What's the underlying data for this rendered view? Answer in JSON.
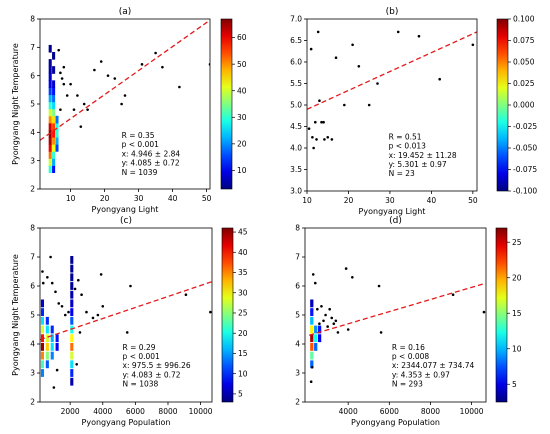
{
  "chart_data": [
    {
      "type": "scatter",
      "panel_label": "(a)",
      "xlabel": "Pyongyang Light",
      "ylabel": "Pyongyang Night Temperature",
      "xlim": [
        1,
        51
      ],
      "ylim": [
        2,
        8
      ],
      "xticks": [
        10,
        20,
        30,
        40,
        50
      ],
      "yticks": [
        2,
        3,
        4,
        5,
        6,
        7,
        8
      ],
      "colorbar": {
        "range": [
          3,
          67
        ],
        "ticks": [
          10,
          20,
          30,
          40,
          50,
          60
        ]
      },
      "regression_line": {
        "x": [
          1,
          51
        ],
        "y": [
          3.72,
          7.96
        ]
      },
      "stats": [
        "R = 0.35",
        "p < 0.001",
        "x: 4.946 ± 2.84",
        "y: 4.085 ± 0.72",
        "N = 1039"
      ],
      "points": [
        [
          7,
          4.8
        ],
        [
          7,
          6.1
        ],
        [
          7.5,
          5.9
        ],
        [
          8,
          5.7
        ],
        [
          9,
          5.3
        ],
        [
          10,
          5.7
        ],
        [
          11,
          4.8
        ],
        [
          12,
          5.3
        ],
        [
          14,
          5.0
        ],
        [
          15,
          4.8
        ],
        [
          17,
          6.2
        ],
        [
          19,
          6.5
        ],
        [
          21,
          6.0
        ],
        [
          23,
          5.9
        ],
        [
          25,
          5.0
        ],
        [
          26,
          5.3
        ],
        [
          31,
          6.4
        ],
        [
          35,
          6.8
        ],
        [
          37,
          6.3
        ],
        [
          42,
          5.6
        ],
        [
          51,
          6.4
        ],
        [
          13,
          4.2
        ],
        [
          6.5,
          6.9
        ],
        [
          8,
          6.3
        ]
      ],
      "density_cells": [
        [
          4,
          2.7,
          30
        ],
        [
          5,
          2.7,
          12
        ],
        [
          4,
          2.95,
          40
        ],
        [
          5,
          2.95,
          22
        ],
        [
          4,
          3.2,
          52
        ],
        [
          5,
          3.2,
          30
        ],
        [
          4,
          3.45,
          60
        ],
        [
          5,
          3.45,
          42
        ],
        [
          6,
          3.45,
          15
        ],
        [
          4,
          3.7,
          64
        ],
        [
          5,
          3.7,
          50
        ],
        [
          6,
          3.7,
          22
        ],
        [
          4,
          3.95,
          66
        ],
        [
          5,
          3.95,
          58
        ],
        [
          6,
          3.95,
          30
        ],
        [
          4,
          4.2,
          62
        ],
        [
          5,
          4.2,
          55
        ],
        [
          6,
          4.2,
          28
        ],
        [
          4,
          4.45,
          50
        ],
        [
          5,
          4.45,
          45
        ],
        [
          6,
          4.45,
          18
        ],
        [
          4,
          4.7,
          40
        ],
        [
          5,
          4.7,
          35
        ],
        [
          4,
          4.95,
          30
        ],
        [
          5,
          4.95,
          25
        ],
        [
          4,
          5.2,
          22
        ],
        [
          5,
          5.2,
          18
        ],
        [
          4,
          5.45,
          15
        ],
        [
          5,
          5.45,
          12
        ],
        [
          4,
          5.7,
          10
        ],
        [
          5,
          5.7,
          8
        ],
        [
          4,
          5.95,
          8
        ],
        [
          4,
          6.2,
          6
        ],
        [
          5,
          6.2,
          5
        ],
        [
          4,
          6.45,
          5
        ],
        [
          5,
          6.7,
          4
        ],
        [
          4,
          6.95,
          4
        ]
      ]
    },
    {
      "type": "scatter",
      "panel_label": "(b)",
      "xlabel": "Pyongyang Light",
      "ylabel": "",
      "xlim": [
        10,
        51
      ],
      "ylim": [
        3.0,
        7.0
      ],
      "xticks": [
        10,
        20,
        30,
        40,
        50
      ],
      "yticks": [
        3.0,
        3.5,
        4.0,
        4.5,
        5.0,
        5.5,
        6.0,
        6.5,
        7.0
      ],
      "colorbar": {
        "range": [
          -0.1,
          0.1
        ],
        "ticks": [
          -0.1,
          -0.075,
          -0.05,
          -0.025,
          0.0,
          0.025,
          0.05,
          0.075,
          0.1
        ]
      },
      "regression_line": {
        "x": [
          10,
          51
        ],
        "y": [
          4.9,
          6.7
        ]
      },
      "stats": [
        "R = 0.51",
        "p < 0.013",
        "x: 19.452 ± 11.28",
        "y: 5.301 ± 0.97",
        "N = 23"
      ],
      "points": [
        [
          10.5,
          4.45
        ],
        [
          11,
          6.3
        ],
        [
          11.3,
          4.25
        ],
        [
          11.6,
          4.0
        ],
        [
          12,
          4.6
        ],
        [
          12.3,
          4.2
        ],
        [
          12.7,
          6.7
        ],
        [
          13,
          5.1
        ],
        [
          13.5,
          4.6
        ],
        [
          14,
          4.6
        ],
        [
          14.2,
          4.2
        ],
        [
          15,
          4.25
        ],
        [
          16,
          4.2
        ],
        [
          17,
          6.1
        ],
        [
          19,
          5.0
        ],
        [
          21,
          6.4
        ],
        [
          22.5,
          5.9
        ],
        [
          25,
          5.0
        ],
        [
          27,
          5.5
        ],
        [
          32,
          6.7
        ],
        [
          37,
          6.6
        ],
        [
          42,
          5.6
        ],
        [
          50,
          6.4
        ]
      ]
    },
    {
      "type": "scatter",
      "panel_label": "(c)",
      "xlabel": "Pyongyang Population",
      "ylabel": "Pyongyang Night Temperature",
      "xlim": [
        150,
        10700
      ],
      "ylim": [
        2,
        8
      ],
      "xticks": [
        2000,
        4000,
        6000,
        8000,
        10000
      ],
      "yticks": [
        2,
        3,
        4,
        5,
        6,
        7,
        8
      ],
      "colorbar": {
        "range": [
          3,
          46
        ],
        "ticks": [
          5,
          10,
          15,
          20,
          25,
          30,
          35,
          40,
          45
        ]
      },
      "regression_line": {
        "x": [
          150,
          10700
        ],
        "y": [
          4.15,
          6.15
        ]
      },
      "stats": [
        "R = 0.29",
        "p < 0.001",
        "x: 975.5 ± 996.26",
        "y: 4.083 ± 0.72",
        "N = 1038"
      ],
      "points": [
        [
          300,
          6.5
        ],
        [
          350,
          6.1
        ],
        [
          600,
          6.3
        ],
        [
          900,
          6.1
        ],
        [
          1100,
          5.8
        ],
        [
          1300,
          5.4
        ],
        [
          1500,
          5.3
        ],
        [
          1700,
          5.0
        ],
        [
          1900,
          5.1
        ],
        [
          2300,
          5.9
        ],
        [
          2500,
          6.2
        ],
        [
          2700,
          5.7
        ],
        [
          3000,
          5.1
        ],
        [
          3400,
          4.9
        ],
        [
          3700,
          5.0
        ],
        [
          3900,
          6.4
        ],
        [
          4000,
          5.3
        ],
        [
          5700,
          6.0
        ],
        [
          5500,
          4.4
        ],
        [
          9100,
          5.7
        ],
        [
          10600,
          5.1
        ],
        [
          1000,
          2.5
        ],
        [
          1200,
          3.1
        ],
        [
          2400,
          3.3
        ],
        [
          800,
          7.0
        ],
        [
          2600,
          4.4
        ]
      ],
      "density_cells": [
        [
          300,
          3.0,
          14
        ],
        [
          300,
          3.3,
          22
        ],
        [
          300,
          3.6,
          35
        ],
        [
          300,
          3.9,
          45
        ],
        [
          300,
          4.2,
          40
        ],
        [
          300,
          4.5,
          28
        ],
        [
          300,
          4.8,
          18
        ],
        [
          300,
          5.1,
          10
        ],
        [
          300,
          5.4,
          6
        ],
        [
          600,
          3.3,
          12
        ],
        [
          600,
          3.6,
          25
        ],
        [
          600,
          3.9,
          32
        ],
        [
          600,
          4.2,
          28
        ],
        [
          600,
          4.5,
          18
        ],
        [
          600,
          4.8,
          10
        ],
        [
          900,
          3.6,
          14
        ],
        [
          900,
          3.9,
          18
        ],
        [
          900,
          4.2,
          16
        ],
        [
          900,
          4.5,
          10
        ],
        [
          1200,
          3.9,
          8
        ],
        [
          1200,
          4.2,
          9
        ],
        [
          2100,
          3.0,
          10
        ],
        [
          2100,
          3.3,
          18
        ],
        [
          2100,
          3.6,
          28
        ],
        [
          2100,
          3.9,
          36
        ],
        [
          2100,
          4.2,
          30
        ],
        [
          2100,
          4.5,
          20
        ],
        [
          2100,
          4.8,
          12
        ],
        [
          2100,
          5.1,
          8
        ],
        [
          2100,
          5.4,
          6
        ],
        [
          2100,
          5.7,
          5
        ],
        [
          2100,
          6.0,
          4
        ],
        [
          2100,
          6.3,
          4
        ],
        [
          2100,
          6.6,
          4
        ],
        [
          2100,
          6.9,
          4
        ],
        [
          2100,
          2.7,
          5
        ]
      ]
    },
    {
      "type": "scatter",
      "panel_label": "(d)",
      "xlabel": "Pyongyang Population",
      "ylabel": "",
      "xlim": [
        1900,
        10700
      ],
      "ylim": [
        2,
        8
      ],
      "xticks": [
        4000,
        6000,
        8000,
        10000
      ],
      "yticks": [
        2,
        3,
        4,
        5,
        6,
        7,
        8
      ],
      "colorbar": {
        "range": [
          2.5,
          27
        ],
        "ticks": [
          5,
          10,
          15,
          20,
          25
        ]
      },
      "regression_line": {
        "x": [
          2100,
          10700
        ],
        "y": [
          4.3,
          6.1
        ]
      },
      "stats": [
        "R = 0.16",
        "p < 0.008",
        "x: 2344.077 ± 734.74",
        "y: 4.353 ± 0.97",
        "N = 293"
      ],
      "points": [
        [
          2300,
          6.4
        ],
        [
          2400,
          6.1
        ],
        [
          2500,
          5.2
        ],
        [
          2700,
          5.3
        ],
        [
          2900,
          5.0
        ],
        [
          3000,
          4.6
        ],
        [
          3200,
          4.9
        ],
        [
          3400,
          4.8
        ],
        [
          3500,
          4.4
        ],
        [
          3900,
          6.6
        ],
        [
          4000,
          4.5
        ],
        [
          4200,
          6.3
        ],
        [
          5500,
          6.0
        ],
        [
          5600,
          4.4
        ],
        [
          9100,
          5.7
        ],
        [
          10600,
          5.1
        ],
        [
          2200,
          2.7
        ],
        [
          2250,
          3.2
        ],
        [
          2600,
          4.7
        ],
        [
          2800,
          4.8
        ],
        [
          3100,
          5.2
        ],
        [
          3300,
          4.7
        ]
      ],
      "density_cells": [
        [
          2230,
          3.3,
          8
        ],
        [
          2230,
          3.6,
          14
        ],
        [
          2230,
          3.9,
          22
        ],
        [
          2230,
          4.2,
          26
        ],
        [
          2230,
          4.5,
          18
        ],
        [
          2230,
          4.8,
          10
        ],
        [
          2230,
          5.1,
          6
        ],
        [
          2230,
          5.4,
          4
        ],
        [
          2420,
          3.9,
          8
        ],
        [
          2420,
          4.2,
          12
        ],
        [
          2420,
          4.5,
          9
        ],
        [
          2610,
          4.2,
          5
        ],
        [
          2610,
          4.5,
          6
        ]
      ]
    }
  ]
}
